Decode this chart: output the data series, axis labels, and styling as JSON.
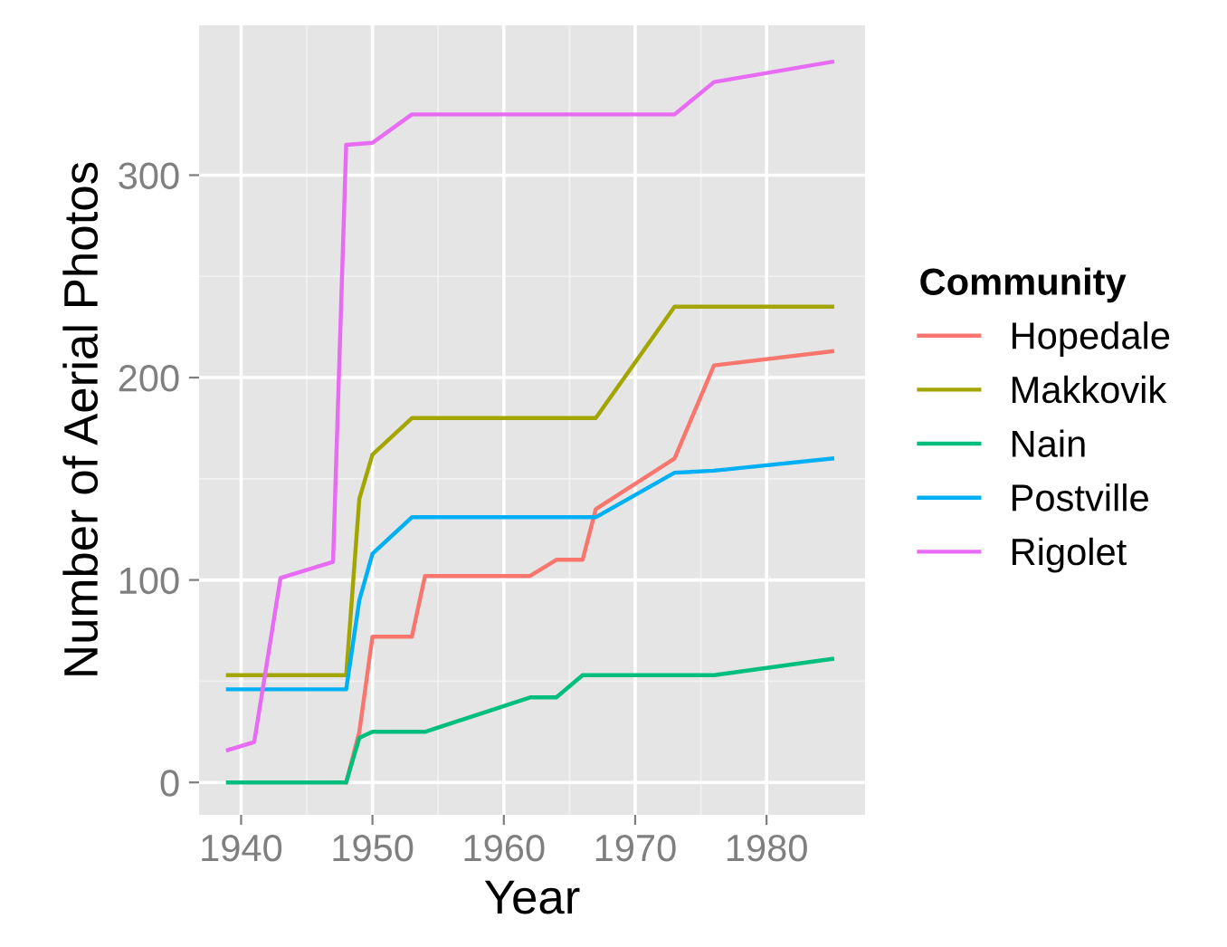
{
  "chart_data": {
    "type": "line",
    "xlabel": "Year",
    "ylabel": "Number of Aerial Photos",
    "legend_title": "Community",
    "legend": "right",
    "xlim": [
      1936.8,
      1987.5
    ],
    "xticks": [
      1940,
      1950,
      1960,
      1970,
      1980
    ],
    "ylim": [
      -16,
      374
    ],
    "yticks": [
      0,
      100,
      200,
      300
    ],
    "grid": true,
    "marker": "none",
    "line_style": "solid",
    "series": [
      {
        "name": "Hopedale",
        "color": "#f8766d",
        "x": [
          1948,
          1949,
          1950,
          1953,
          1954,
          1962,
          1964,
          1966,
          1967,
          1973,
          1976,
          1985
        ],
        "values": [
          0,
          25,
          72,
          72,
          102,
          102,
          110,
          110,
          135,
          160,
          206,
          213
        ]
      },
      {
        "name": "Makkovik",
        "color": "#a3a500",
        "x": [
          1939,
          1948,
          1949,
          1950,
          1953,
          1967,
          1973,
          1985
        ],
        "values": [
          53,
          53,
          140,
          162,
          180,
          180,
          235,
          235
        ]
      },
      {
        "name": "Nain",
        "color": "#00bf7d",
        "x": [
          1939,
          1948,
          1949,
          1950,
          1954,
          1962,
          1964,
          1966,
          1976,
          1985
        ],
        "values": [
          0,
          0,
          22,
          25,
          25,
          42,
          42,
          53,
          53,
          61
        ]
      },
      {
        "name": "Postville",
        "color": "#00b0f6",
        "x": [
          1939,
          1948,
          1949,
          1950,
          1953,
          1967,
          1973,
          1976,
          1985
        ],
        "values": [
          46,
          46,
          90,
          113,
          131,
          131,
          153,
          154,
          160
        ]
      },
      {
        "name": "Rigolet",
        "color": "#e76bf3",
        "x": [
          1939,
          1941,
          1943,
          1947,
          1948,
          1950,
          1953,
          1973,
          1976,
          1985
        ],
        "values": [
          16,
          20,
          101,
          109,
          315,
          316,
          330,
          330,
          346,
          356
        ]
      }
    ]
  }
}
